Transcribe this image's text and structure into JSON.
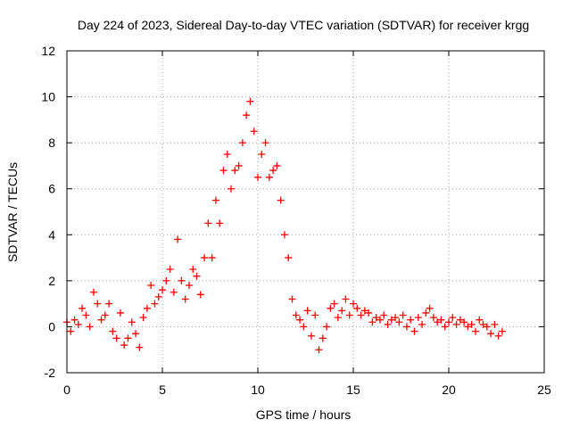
{
  "chart_data": {
    "type": "scatter",
    "title": "Day 224 of 2023, Sidereal Day-to-day VTEC variation (SDTVAR) for receiver krgg",
    "xlabel": "GPS time / hours",
    "ylabel": "SDTVAR / TECUs",
    "xlim": [
      0,
      25
    ],
    "ylim": [
      -2,
      12
    ],
    "xticks": [
      "0",
      "5",
      "10",
      "15",
      "20",
      "25"
    ],
    "yticks": [
      "-2",
      "0",
      "2",
      "4",
      "6",
      "8",
      "10",
      "12"
    ],
    "grid": true,
    "marker": "+",
    "color": "#ff0000",
    "series": [
      {
        "name": "SDTVAR",
        "x": [
          0.0,
          0.2,
          0.4,
          0.6,
          0.8,
          1.0,
          1.2,
          1.4,
          1.6,
          1.8,
          2.0,
          2.2,
          2.4,
          2.6,
          2.8,
          3.0,
          3.2,
          3.4,
          3.6,
          3.8,
          4.0,
          4.2,
          4.4,
          4.6,
          4.8,
          5.0,
          5.2,
          5.4,
          5.6,
          5.8,
          6.0,
          6.2,
          6.4,
          6.6,
          6.8,
          7.0,
          7.2,
          7.4,
          7.6,
          7.8,
          8.0,
          8.2,
          8.4,
          8.6,
          8.8,
          9.0,
          9.2,
          9.4,
          9.6,
          9.8,
          10.0,
          10.2,
          10.4,
          10.6,
          10.8,
          11.0,
          11.2,
          11.4,
          11.6,
          11.8,
          12.0,
          12.2,
          12.4,
          12.6,
          12.8,
          13.0,
          13.2,
          13.4,
          13.6,
          13.8,
          14.0,
          14.2,
          14.4,
          14.6,
          14.8,
          15.0,
          15.2,
          15.4,
          15.6,
          15.8,
          16.0,
          16.2,
          16.4,
          16.6,
          16.8,
          17.0,
          17.2,
          17.4,
          17.6,
          17.8,
          18.0,
          18.2,
          18.4,
          18.6,
          18.8,
          19.0,
          19.2,
          19.4,
          19.6,
          19.8,
          20.0,
          20.2,
          20.4,
          20.6,
          20.8,
          21.0,
          21.2,
          21.4,
          21.6,
          21.8,
          22.0,
          22.2,
          22.4,
          22.6,
          22.8
        ],
        "y": [
          0.2,
          -0.2,
          0.3,
          0.1,
          0.8,
          0.5,
          0.0,
          1.5,
          1.0,
          0.3,
          0.5,
          1.0,
          -0.2,
          -0.5,
          0.6,
          -0.8,
          -0.5,
          0.2,
          -0.3,
          -0.9,
          0.4,
          0.8,
          1.8,
          1.0,
          1.3,
          1.6,
          2.0,
          2.5,
          1.5,
          3.8,
          2.0,
          1.2,
          1.8,
          2.5,
          2.2,
          1.4,
          3.0,
          4.5,
          3.0,
          5.5,
          4.5,
          6.8,
          7.5,
          6.0,
          6.8,
          7.0,
          8.0,
          9.2,
          9.8,
          8.5,
          6.5,
          7.5,
          8.0,
          6.5,
          6.8,
          7.0,
          5.5,
          4.0,
          3.0,
          1.2,
          0.5,
          0.3,
          0.0,
          0.7,
          -0.4,
          0.5,
          -1.0,
          -0.5,
          0.0,
          0.8,
          1.0,
          0.4,
          0.7,
          1.2,
          0.5,
          1.0,
          0.8,
          0.5,
          0.7,
          0.6,
          0.2,
          0.4,
          0.3,
          0.5,
          0.1,
          0.3,
          0.4,
          0.2,
          0.5,
          0.0,
          0.3,
          -0.2,
          0.4,
          0.1,
          0.6,
          0.8,
          0.4,
          0.2,
          0.3,
          0.0,
          0.2,
          0.4,
          0.1,
          0.3,
          0.2,
          0.0,
          0.1,
          -0.2,
          0.3,
          0.1,
          0.0,
          -0.3,
          0.1,
          -0.4,
          -0.2
        ]
      }
    ]
  }
}
